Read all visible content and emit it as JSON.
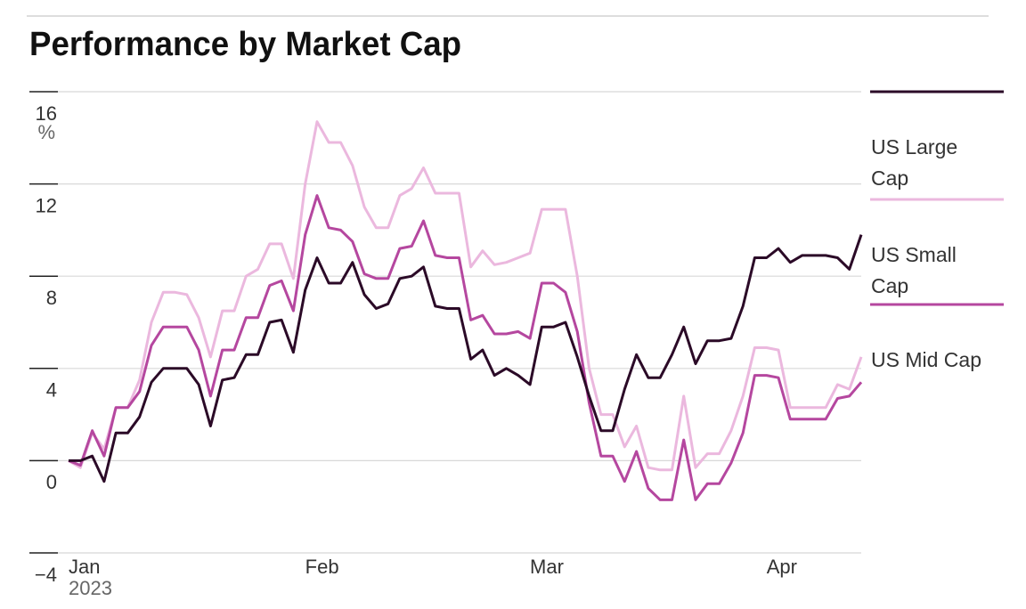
{
  "chart_data": {
    "type": "line",
    "title": "Performance by Market Cap",
    "y_unit": "%",
    "x_year": "2023",
    "categories": [
      "Jan",
      null,
      null,
      null,
      null,
      null,
      null,
      null,
      null,
      null,
      null,
      null,
      null,
      null,
      null,
      null,
      null,
      null,
      null,
      null,
      "Feb",
      null,
      null,
      null,
      null,
      null,
      null,
      null,
      null,
      null,
      null,
      null,
      null,
      null,
      null,
      null,
      null,
      null,
      null,
      "Mar",
      null,
      null,
      null,
      null,
      null,
      null,
      null,
      null,
      null,
      null,
      null,
      null,
      null,
      null,
      null,
      null,
      null,
      null,
      null,
      "Apr",
      null,
      null,
      null,
      null,
      null,
      null,
      null,
      null
    ],
    "series": [
      {
        "name": "US Large Cap",
        "color": "#2b0a27",
        "values": [
          0,
          0,
          0.2,
          -0.9,
          1.2,
          1.2,
          1.9,
          3.4,
          4.0,
          4.0,
          4.0,
          3.3,
          1.5,
          3.5,
          3.6,
          4.6,
          4.6,
          6.0,
          6.1,
          4.7,
          7.4,
          8.8,
          7.7,
          7.7,
          8.6,
          7.2,
          6.6,
          6.8,
          7.9,
          8.0,
          8.4,
          6.7,
          6.6,
          6.6,
          4.4,
          4.8,
          3.7,
          4.0,
          3.7,
          3.3,
          5.8,
          5.8,
          6.0,
          4.5,
          2.8,
          1.3,
          1.3,
          3.1,
          4.6,
          3.6,
          3.6,
          4.6,
          5.8,
          4.2,
          5.2,
          5.2,
          5.3,
          6.7,
          8.8,
          8.8,
          9.2,
          8.6,
          8.9,
          8.9,
          8.9,
          8.8,
          8.3,
          9.8
        ]
      },
      {
        "name": "US Small Cap",
        "color": "#ebb8de",
        "values": [
          0,
          -0.3,
          1.2,
          0.5,
          2.3,
          2.3,
          3.5,
          6.0,
          7.3,
          7.3,
          7.2,
          6.2,
          4.5,
          6.5,
          6.5,
          8.0,
          8.3,
          9.4,
          9.4,
          7.9,
          12.0,
          14.7,
          13.8,
          13.8,
          12.8,
          11.0,
          10.1,
          10.1,
          11.5,
          11.8,
          12.7,
          11.6,
          11.6,
          11.6,
          8.4,
          9.1,
          8.5,
          8.6,
          8.8,
          9.0,
          10.9,
          10.9,
          10.9,
          8.0,
          4.0,
          2.0,
          2.0,
          0.6,
          1.5,
          -0.3,
          -0.4,
          -0.4,
          2.8,
          -0.3,
          0.3,
          0.3,
          1.3,
          2.8,
          4.9,
          4.9,
          4.8,
          2.3,
          2.3,
          2.3,
          2.3,
          3.3,
          3.1,
          4.5
        ]
      },
      {
        "name": "US Mid Cap",
        "color": "#b5479f",
        "values": [
          0,
          -0.2,
          1.3,
          0.2,
          2.3,
          2.3,
          3.0,
          5.0,
          5.8,
          5.8,
          5.8,
          4.8,
          2.8,
          4.8,
          4.8,
          6.2,
          6.2,
          7.6,
          7.8,
          6.5,
          9.8,
          11.5,
          10.1,
          10.0,
          9.5,
          8.1,
          7.9,
          7.9,
          9.2,
          9.3,
          10.4,
          8.9,
          8.8,
          8.8,
          6.1,
          6.3,
          5.5,
          5.5,
          5.6,
          5.3,
          7.7,
          7.7,
          7.3,
          5.6,
          2.5,
          0.2,
          0.2,
          -0.9,
          0.4,
          -1.2,
          -1.7,
          -1.7,
          0.9,
          -1.7,
          -1.0,
          -1.0,
          -0.1,
          1.2,
          3.7,
          3.7,
          3.6,
          1.8,
          1.8,
          1.8,
          1.8,
          2.7,
          2.8,
          3.4
        ]
      }
    ],
    "ylim": [
      -4,
      16
    ],
    "yticks": [
      {
        "value": -4,
        "label": "−4"
      },
      0,
      4,
      8,
      12,
      16
    ],
    "grid": true,
    "legend": "right"
  }
}
